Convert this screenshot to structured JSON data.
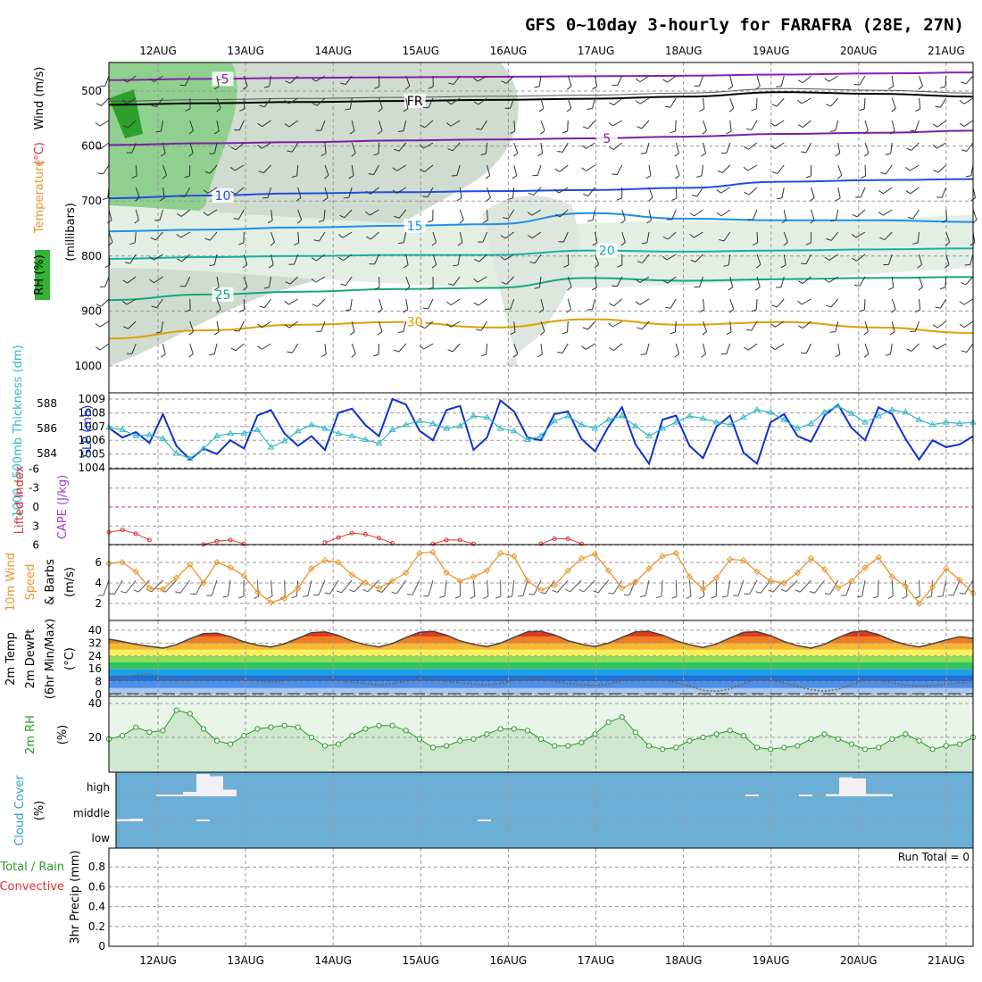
{
  "chart_data": {
    "title": "GFS 0~10day 3-hourly for FARAFRA (28E, 27N)",
    "type": "line",
    "x_axis": {
      "labels": [
        "12AUG",
        "13AUG",
        "14AUG",
        "15AUG",
        "16AUG",
        "17AUG",
        "18AUG",
        "19AUG",
        "20AUG",
        "21AUG"
      ],
      "step_hours": 3
    },
    "panels": [
      {
        "id": "upper_air",
        "ylabel_parts": [
          "RH (%)",
          "Temperature",
          "(°C)",
          "Wind (m/s)"
        ],
        "ylabel_sub": "(millibars)",
        "yticks": [
          "500",
          "600",
          "700",
          "800",
          "900",
          "1000"
        ],
        "ylim": [
          450,
          1000
        ],
        "contour_labels": [
          "-5",
          "5",
          "10",
          "15",
          "20",
          "25",
          "30",
          "FR",
          "10",
          "30",
          "30"
        ],
        "temperature_levels_mb": [
          {
            "label": "-5",
            "values": [
              480,
              478,
              476,
              475,
              474,
              473,
              472,
              470,
              468,
              466
            ]
          },
          {
            "label": "FR",
            "values": [
              525,
              522,
              520,
              518,
              516,
              514,
              510,
              502,
              505,
              510
            ]
          },
          {
            "label": "5",
            "values": [
              598,
              595,
              593,
              590,
              588,
              586,
              583,
              578,
              576,
              572
            ]
          },
          {
            "label": "10",
            "values": [
              695,
              690,
              686,
              684,
              682,
              680,
              676,
              665,
              662,
              660
            ]
          },
          {
            "label": "15",
            "values": [
              755,
              752,
              748,
              745,
              742,
              722,
              732,
              735,
              735,
              738
            ]
          },
          {
            "label": "20",
            "values": [
              805,
              802,
              800,
              798,
              798,
              790,
              792,
              790,
              788,
              786
            ]
          },
          {
            "label": "25",
            "values": [
              880,
              870,
              865,
              860,
              858,
              840,
              845,
              842,
              840,
              838
            ]
          },
          {
            "label": "30",
            "values": [
              950,
              935,
              925,
              920,
              930,
              915,
              925,
              920,
              930,
              940
            ]
          }
        ]
      },
      {
        "id": "slp_thickness",
        "ylabel_left": "1000~500mb Thickness (dm)",
        "ylabel_right": "SLP (mb)",
        "yticks_thickness": [
          "588",
          "586",
          "584"
        ],
        "yticks_slp": [
          "1009",
          "1008",
          "1007",
          "1006",
          "1005",
          "1004"
        ],
        "series": [
          {
            "name": "SLP (mb)",
            "values": [
              1006.9,
              1006.2,
              1006.6,
              1005.8,
              1007.9,
              1005.6,
              1004.6,
              1005.4,
              1005.0,
              1006.0,
              1005.4,
              1007.8,
              1008.2,
              1006.5,
              1005.6,
              1006.3,
              1005.3,
              1008.0,
              1008.3,
              1007.1,
              1006.3,
              1009.0,
              1008.6,
              1006.7,
              1006.0,
              1008.2,
              1008.5,
              1005.3,
              1006.2,
              1008.9,
              1008.1,
              1006.2,
              1006.0,
              1007.9,
              1008.1,
              1006.1,
              1005.2,
              1007.0,
              1008.4,
              1005.7,
              1004.3,
              1007.5,
              1007.8,
              1005.6,
              1004.7,
              1007.0,
              1007.8,
              1005.1,
              1004.3,
              1007.3,
              1007.9,
              1006.3,
              1005.9,
              1007.8,
              1008.6,
              1006.9,
              1006.0,
              1008.4,
              1007.9,
              1006.1,
              1004.6,
              1006.0,
              1005.5,
              1005.7,
              1006.3
            ]
          },
          {
            "name": "1000-500mb Thickness (dm)",
            "values": [
              586.1,
              585.9,
              585.4,
              585.5,
              585.2,
              584.0,
              583.6,
              584.4,
              585.4,
              585.6,
              585.6,
              585.9,
              584.5,
              585.0,
              585.8,
              586.3,
              586.0,
              585.6,
              585.4,
              585.1,
              584.8,
              585.9,
              586.3,
              586.6,
              586.4,
              586.0,
              586.2,
              587.0,
              586.9,
              586.0,
              585.8,
              585.1,
              585.4,
              586.6,
              587.0,
              586.3,
              586.0,
              586.7,
              587.0,
              586.2,
              585.4,
              586.0,
              586.5,
              587.0,
              586.8,
              586.5,
              586.3,
              586.9,
              587.5,
              587.3,
              586.7,
              586.0,
              586.4,
              587.3,
              587.8,
              587.2,
              586.5,
              587.0,
              587.5,
              587.3,
              586.7,
              586.3,
              586.5,
              586.4,
              586.5
            ]
          }
        ]
      },
      {
        "id": "lifted_cape",
        "ylabel_left": "Lifted Index",
        "ylabel_right": "CAPE (J/kg)",
        "yticks": [
          "-6",
          "-3",
          "0",
          "3",
          "6"
        ],
        "series": [
          {
            "name": "Lifted Index",
            "segments": [
              {
                "start": 0,
                "values": [
                  4.0,
                  3.6,
                  4.2,
                  5.2
                ]
              },
              {
                "start": 7,
                "values": [
                  5.9,
                  5.4,
                  5.2,
                  5.8
                ]
              },
              {
                "start": 16,
                "values": [
                  5.6,
                  4.8,
                  4.1,
                  4.3,
                  4.9,
                  5.7
                ]
              },
              {
                "start": 24,
                "values": [
                  5.8,
                  5.2,
                  5.2,
                  5.8
                ]
              },
              {
                "start": 32,
                "values": [
                  5.8,
                  5.0,
                  5.0,
                  5.8
                ]
              }
            ]
          }
        ]
      },
      {
        "id": "wind10m",
        "ylabel_parts": [
          "10m Wind",
          "Speed",
          "& Barbs",
          "(m/s)"
        ],
        "yticks": [
          "6",
          "4",
          "2"
        ],
        "ylim": [
          0.5,
          7.2
        ],
        "series": [
          {
            "name": "10m Wind Speed (m/s)",
            "values": [
              5.9,
              6.0,
              5.1,
              3.5,
              3.4,
              4.5,
              5.8,
              4.0,
              6.0,
              5.5,
              4.7,
              3.1,
              2.1,
              2.5,
              3.5,
              5.4,
              6.2,
              6.0,
              4.8,
              4.0,
              3.5,
              4.2,
              5.0,
              6.9,
              7.0,
              5.0,
              4.2,
              4.6,
              5.2,
              6.9,
              6.6,
              4.2,
              3.3,
              3.8,
              5.2,
              6.4,
              6.8,
              5.2,
              3.5,
              4.1,
              5.4,
              6.6,
              6.9,
              4.6,
              3.4,
              4.5,
              6.3,
              6.2,
              5.1,
              4.2,
              4.0,
              5.0,
              6.4,
              5.3,
              3.5,
              4.2,
              5.5,
              6.5,
              4.6,
              3.7,
              2.0,
              3.6,
              5.4,
              4.3,
              3.0
            ]
          }
        ]
      },
      {
        "id": "temp2m",
        "ylabel_parts": [
          "2m Temp",
          "2m DewPt",
          "(6hr Min/Max)",
          "(°C)"
        ],
        "yticks": [
          "40",
          "32",
          "24",
          "16",
          "8",
          "0"
        ],
        "ylim": [
          0,
          42
        ],
        "series": [
          {
            "name": "2m Temp (°C)",
            "values": [
              34.5,
              33.0,
              31.3,
              30.0,
              28.9,
              31.0,
              34.8,
              37.9,
              38.2,
              36.0,
              32.8,
              30.8,
              29.6,
              31.6,
              35.0,
              38.5,
              39.0,
              36.8,
              33.3,
              31.0,
              29.6,
              31.8,
              35.5,
              38.8,
              39.3,
              37.0,
              33.4,
              31.2,
              29.8,
              32.0,
              35.6,
              39.0,
              39.4,
              37.1,
              33.5,
              31.3,
              29.9,
              32.0,
              35.6,
              39.0,
              39.3,
              37.0,
              33.5,
              31.0,
              29.3,
              31.5,
              35.2,
              38.7,
              39.1,
              36.7,
              33.0,
              30.4,
              28.9,
              31.3,
              35.4,
              38.8,
              39.5,
              37.3,
              33.6,
              31.1,
              29.6,
              31.6,
              34.0,
              36.0,
              35.0
            ]
          },
          {
            "name": "2m DewPt (°C)",
            "values": [
              9.6,
              10.5,
              12.0,
              12.8,
              10.6,
              9.2,
              8.8,
              10.1,
              10.9,
              10.6,
              9.4,
              8.4,
              7.6,
              8.5,
              9.7,
              10.4,
              10.2,
              8.9,
              7.8,
              6.9,
              6.1,
              6.8,
              8.2,
              9.3,
              9.1,
              8.2,
              7.3,
              6.5,
              6.0,
              7.0,
              8.6,
              9.8,
              9.5,
              8.1,
              6.8,
              6.2,
              5.6,
              6.5,
              8.4,
              9.9,
              10.3,
              9.0,
              7.4,
              5.3,
              2.6,
              2.0,
              3.5,
              6.8,
              9.6,
              9.1,
              7.1,
              5.0,
              3.0,
              2.0,
              3.2,
              6.2,
              8.7,
              8.9,
              7.3,
              6.0,
              5.1,
              5.6,
              6.5,
              7.2,
              7.5
            ]
          }
        ]
      },
      {
        "id": "rh2m",
        "ylabel": "2m RH",
        "ylabel_unit": "(%)",
        "yticks": [
          "40",
          "20"
        ],
        "ylim": [
          0,
          43
        ],
        "series": [
          {
            "name": "2m RH (%)",
            "values": [
              19,
              21,
              26,
              23,
              24,
              36,
              34,
              25,
              18,
              16,
              21,
              25,
              26,
              27,
              26,
              20,
              15,
              16,
              21,
              25,
              27,
              27,
              24,
              19,
              14,
              15,
              18,
              19,
              22,
              25,
              25,
              24,
              19,
              15,
              15,
              17,
              22,
              29,
              32,
              23,
              15,
              13,
              14,
              18,
              20,
              22,
              24,
              21,
              14,
              13,
              14,
              15,
              19,
              22,
              19,
              16,
              13,
              14,
              19,
              22,
              18,
              13,
              15,
              16,
              20
            ]
          }
        ]
      },
      {
        "id": "cloud",
        "ylabel": "Cloud Cover",
        "ylabel_unit": "(%)",
        "levels": [
          "high",
          "middle",
          "low"
        ],
        "colors": {
          "clear": "#6baed6",
          "cloud": "#f4eef7"
        },
        "high_cloud": [
          0,
          0,
          0,
          5,
          5,
          20,
          100,
          90,
          30,
          0,
          0,
          0,
          0,
          0,
          0,
          0,
          0,
          0,
          0,
          0,
          0,
          0,
          0,
          0,
          0,
          0,
          0,
          0,
          0,
          0,
          0,
          0,
          0,
          0,
          0,
          0,
          0,
          0,
          0,
          0,
          0,
          0,
          0,
          0,
          0,
          0,
          0,
          5,
          0,
          0,
          0,
          5,
          0,
          10,
          85,
          80,
          10,
          10,
          0,
          0,
          0,
          0,
          0,
          0,
          0
        ],
        "middle_cloud": [
          20,
          25,
          0,
          0,
          0,
          0,
          10,
          0,
          0,
          0,
          0,
          0,
          0,
          0,
          0,
          0,
          0,
          0,
          0,
          0,
          0,
          0,
          0,
          0,
          0,
          0,
          0,
          0,
          0,
          0,
          0,
          0,
          0,
          0,
          0,
          0,
          0,
          0,
          0,
          0,
          0,
          0,
          0,
          0,
          0,
          0,
          0,
          0,
          0,
          0,
          0,
          0,
          0,
          0,
          0,
          0,
          0,
          0,
          0,
          0,
          0,
          0,
          0,
          0,
          0
        ],
        "middle_cloud_extra": [
          {
            "index": 27,
            "value": 15
          }
        ],
        "low_cloud": [
          0
        ]
      },
      {
        "id": "precip",
        "ylabel_parts": [
          "Total / Rain",
          "Convective",
          "3hr Precip (mm)"
        ],
        "yticks": [
          "0.8",
          "0.6",
          "0.4",
          "0.2",
          "0"
        ],
        "ylim": [
          0,
          0.9
        ],
        "annotation": "Run Total = 0",
        "series": [
          {
            "name": "Total / Rain",
            "values": [
              0
            ]
          },
          {
            "name": "Convective",
            "values": [
              0
            ]
          }
        ]
      }
    ],
    "colors": {
      "temp_minus5": "#8b1fb0",
      "temp_fr": "#000000",
      "temp_5": "#7b1fa2",
      "temp_10": "#1f4fe0",
      "temp_15": "#1e90e8",
      "temp_20": "#18b0a8",
      "temp_25": "#13a882",
      "temp_30": "#e0a000",
      "slp": "#1030d0",
      "thickness": "#30b8c8",
      "lifted": "#e03030",
      "wind": "#e8962a",
      "rh_line": "#2a9a2a",
      "rh_fill": "#cfe7cf",
      "dewpt": "#8a5a2a"
    }
  }
}
